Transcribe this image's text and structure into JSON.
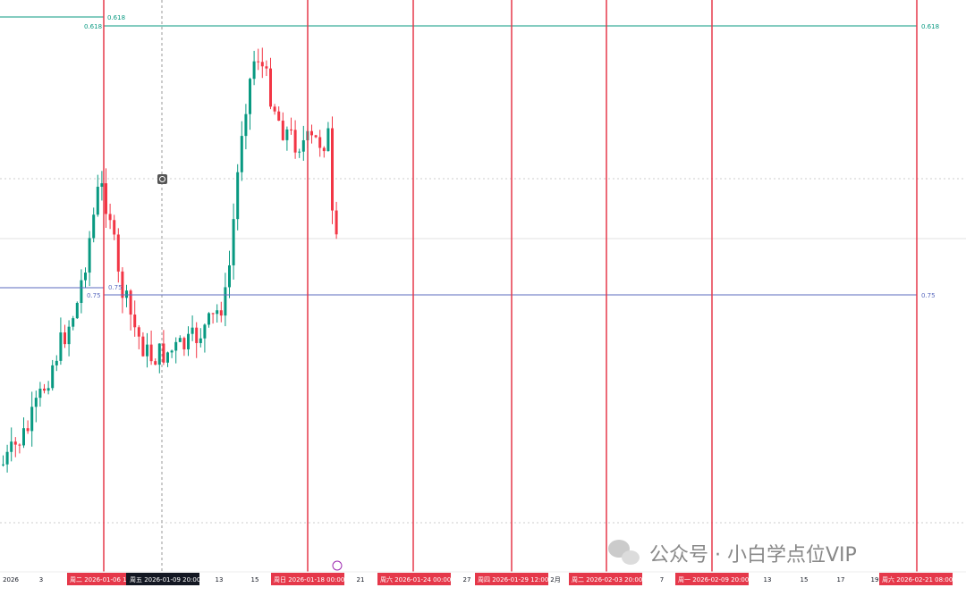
{
  "fib_levels": [
    "0.618",
    "0.75"
  ],
  "time_axis": [
    "2026",
    "3",
    "13",
    "15",
    "21",
    "27",
    "2月",
    "7",
    "13",
    "15",
    "17",
    "19"
  ],
  "marker_labels": [
    "周二 2026-01-06 12",
    "周日 2026-01-18 00:00",
    "周六 2026-01-24 00:00",
    "周四 2026-01-29 12:00",
    "周二 2026-02-03 20:00",
    "周一 2026-02-09 20:00",
    "周六 2026-02-21 08:00"
  ],
  "crosshair_label": "周五 2026-01-09 20:00",
  "watermark": "公众号 · 小白学点位VIP"
}
